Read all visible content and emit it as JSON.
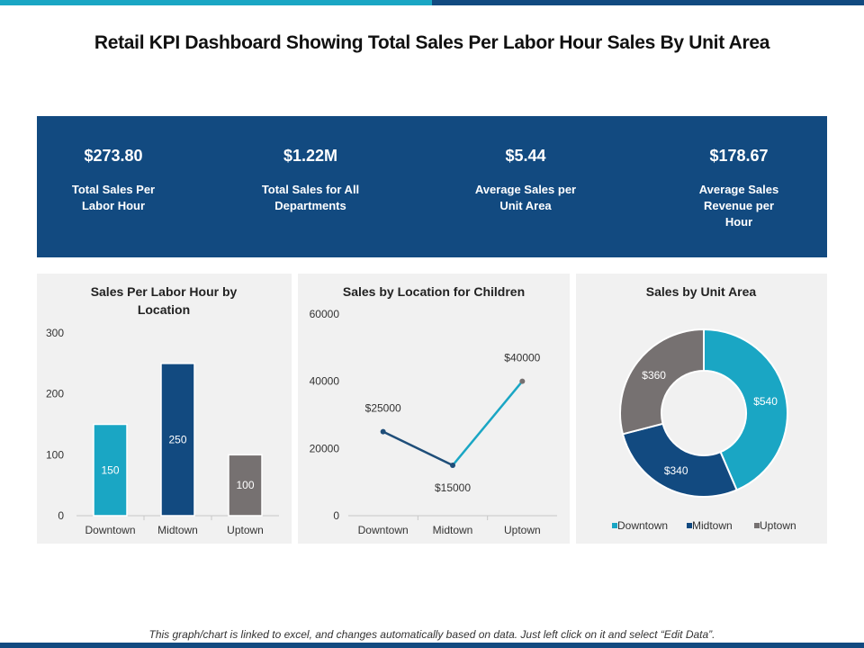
{
  "header": {
    "title": "Retail KPI Dashboard Showing Total Sales Per Labor Hour Sales By Unit Area"
  },
  "kpis": [
    {
      "value": "$273.80",
      "label_lines": [
        "Total Sales Per",
        "Labor Hour"
      ]
    },
    {
      "value": "$1.22M",
      "label_lines": [
        "Total Sales for All",
        "Departments"
      ]
    },
    {
      "value": "$5.44",
      "label_lines": [
        "Average Sales per",
        "Unit Area"
      ]
    },
    {
      "value": "$178.67",
      "label_lines": [
        "Average Sales",
        "Revenue per",
        "Hour"
      ]
    }
  ],
  "colors": {
    "navy": "#124a80",
    "teal": "#1aa6c4",
    "gray": "#767171",
    "line_dark": "#1f4e79",
    "line_teal": "#1aa6c4"
  },
  "chart_data": [
    {
      "type": "bar",
      "title_lines": [
        "Sales Per Labor Hour by",
        "Location"
      ],
      "categories": [
        "Downtown",
        "Midtown",
        "Uptown"
      ],
      "values": [
        150,
        250,
        100
      ],
      "value_labels": [
        "150",
        "250",
        "100"
      ],
      "colors": [
        "#1aa6c4",
        "#124a80",
        "#767171"
      ],
      "ylim": [
        0,
        300
      ],
      "yticks": [
        0,
        100,
        200,
        300
      ],
      "ytick_labels": [
        "0",
        "100",
        "200",
        "300"
      ],
      "xlabel": "",
      "ylabel": ""
    },
    {
      "type": "line",
      "title_lines": [
        "Sales by Location for Children"
      ],
      "categories": [
        "Downtown",
        "Midtown",
        "Uptown"
      ],
      "values": [
        25000,
        15000,
        40000
      ],
      "value_labels": [
        "$25000",
        "$15000",
        "$40000"
      ],
      "ylim": [
        0,
        60000
      ],
      "yticks": [
        0,
        20000,
        40000,
        60000
      ],
      "ytick_labels": [
        "0",
        "20000",
        "40000",
        "60000"
      ],
      "xlabel": "",
      "ylabel": ""
    },
    {
      "type": "pie",
      "title_lines": [
        "Sales by Unit Area"
      ],
      "categories": [
        "Downtown",
        "Midtown",
        "Uptown"
      ],
      "values": [
        540,
        340,
        360
      ],
      "value_labels": [
        "$540",
        "$340",
        "$360"
      ],
      "colors": [
        "#1aa6c4",
        "#124a80",
        "#767171"
      ],
      "legend": "bottom"
    }
  ],
  "footer": {
    "note": "This graph/chart is linked to excel, and changes automatically based on data. Just left click on it and select “Edit Data”."
  }
}
